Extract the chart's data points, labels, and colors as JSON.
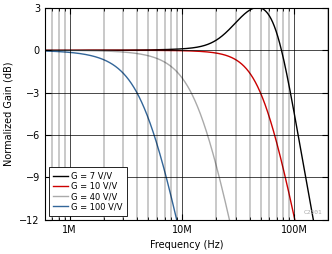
{
  "title": "",
  "xlabel": "Frequency (Hz)",
  "ylabel": "Normalized Gain (dB)",
  "xlim": [
    600000.0,
    200000000.0
  ],
  "ylim": [
    -12,
    3
  ],
  "yticks": [
    3,
    0,
    -3,
    -6,
    -9,
    -12
  ],
  "background_color": "#ffffff",
  "legend_entries": [
    "G = 7 V/V",
    "G = 10 V/V",
    "G = 40 V/V",
    "G = 100 V/V"
  ],
  "line_colors": [
    "#000000",
    "#cc0000",
    "#aaaaaa",
    "#336699"
  ],
  "watermark": "C2301",
  "curves": {
    "G7": {
      "bw": 70000000.0,
      "Q": 1.05,
      "peak_db": 1.6,
      "peak_f": 42000000.0
    },
    "G10": {
      "bw": 52000000.0,
      "Q": 0.68
    },
    "G40": {
      "bw": 14000000.0,
      "Q": 0.62
    },
    "G100": {
      "bw": 4800000.0,
      "Q": 0.6
    }
  }
}
